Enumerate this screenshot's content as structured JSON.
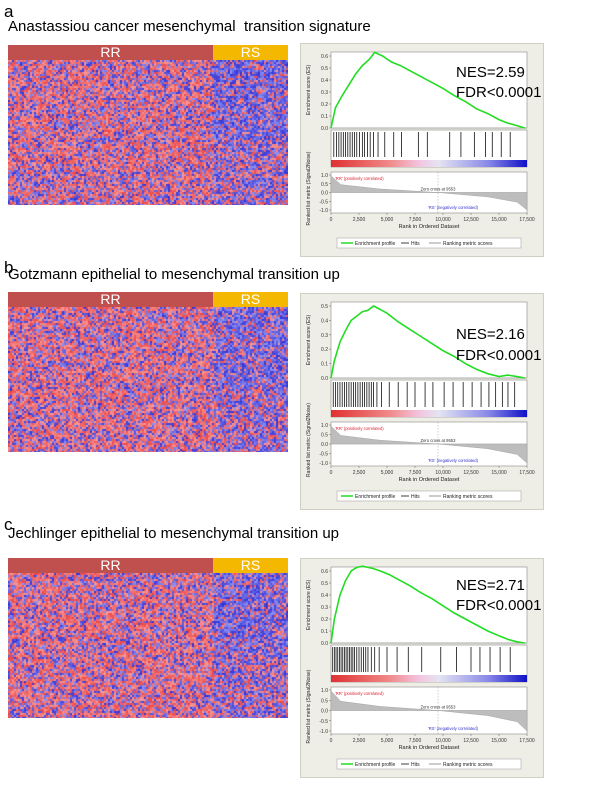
{
  "panels": [
    {
      "letter": "a",
      "title": "Anastassiou cancer mesenchymal  transition signature",
      "group_rr": "RR",
      "group_rs": "RS",
      "nes": "NES=2.59",
      "fdr": "FDR<0.0001"
    },
    {
      "letter": "b",
      "title": "Gotzmann epithelial to mesenchymal transition up",
      "group_rr": "RR",
      "group_rs": "RS",
      "nes": "NES=2.16",
      "fdr": "FDR<0.0001"
    },
    {
      "letter": "c",
      "title": "Jechlinger epithelial to mesenchymal transition up",
      "group_rr": "RR",
      "group_rs": "RS",
      "nes": "NES=2.71",
      "fdr": "FDR<0.0001"
    }
  ],
  "gsea_labels": {
    "es_axis": "Enrichment score (ES)",
    "metric_axis": "Ranked list metric (Signal2Noise)",
    "x_axis": "Rank in Ordered Dataset",
    "pos_label": "'RR' (positively correlated)",
    "neg_label": "'RS' (negatively correlated)",
    "zero_cross": "Zero cross at 9553",
    "legend_profile": "Enrichment profile",
    "legend_hits": "Hits",
    "legend_ranking": "Ranking metric scores"
  },
  "colors": {
    "rr": "#c0504d",
    "rs": "#f5b800",
    "profile": "#22dd22",
    "heat_red": "#d9534f",
    "heat_blue": "#3a3ab8"
  },
  "chart_data": [
    {
      "type": "line",
      "title": "Anastassiou cancer mesenchymal  transition signature",
      "xlabel": "Rank in Ordered Dataset",
      "ylabel": "Enrichment score (ES)",
      "xlim": [
        0,
        17500
      ],
      "ylim": [
        0,
        0.6
      ],
      "x_ticks": [
        "0",
        "2,500",
        "5,000",
        "7,500",
        "10,000",
        "12,500",
        "15,000",
        "17,500"
      ],
      "y_ticks": [
        "0.0",
        "0.1",
        "0.2",
        "0.3",
        "0.4",
        "0.5",
        "0.6"
      ],
      "metric_ticks": [
        "1.0",
        "0.5",
        "0.0",
        "-0.5",
        "-1.0"
      ],
      "x": [
        0,
        400,
        1000,
        1600,
        2200,
        2800,
        3400,
        3900,
        4600,
        5400,
        6200,
        7000,
        8000,
        9000,
        10000,
        11000,
        12000,
        13000,
        14000,
        15000,
        15800,
        16600,
        17300
      ],
      "y": [
        0.0,
        0.17,
        0.27,
        0.36,
        0.45,
        0.52,
        0.57,
        0.63,
        0.6,
        0.55,
        0.52,
        0.48,
        0.43,
        0.38,
        0.33,
        0.27,
        0.22,
        0.16,
        0.12,
        0.07,
        0.04,
        0.02,
        0.0
      ],
      "hits": [
        250,
        500,
        700,
        900,
        1100,
        1300,
        1500,
        1700,
        1900,
        2100,
        2300,
        2550,
        2800,
        3000,
        3250,
        3500,
        3800,
        4200,
        4800,
        5600,
        6300,
        7800,
        8600,
        10600,
        11600,
        12800,
        13800,
        14400,
        15200,
        16000
      ],
      "zero_cross": 9553
    },
    {
      "type": "line",
      "title": "Gotzmann epithelial to mesenchymal transition up",
      "xlabel": "Rank in Ordered Dataset",
      "ylabel": "Enrichment score (ES)",
      "xlim": [
        0,
        17500
      ],
      "ylim": [
        0,
        0.5
      ],
      "x_ticks": [
        "0",
        "2,500",
        "5,000",
        "7,500",
        "10,000",
        "12,500",
        "15,000",
        "17,500"
      ],
      "y_ticks": [
        "0.0",
        "0.1",
        "0.2",
        "0.3",
        "0.4",
        "0.5"
      ],
      "metric_ticks": [
        "1.0",
        "0.5",
        "0.0",
        "-0.5",
        "-1.0"
      ],
      "x": [
        0,
        300,
        800,
        1300,
        1800,
        2300,
        2800,
        3300,
        3800,
        4300,
        5000,
        6000,
        7000,
        8000,
        9000,
        10000,
        11000,
        12000,
        13000,
        14000,
        15000,
        15800,
        16600,
        17300
      ],
      "y": [
        0.0,
        0.12,
        0.25,
        0.33,
        0.4,
        0.43,
        0.46,
        0.47,
        0.5,
        0.48,
        0.45,
        0.39,
        0.34,
        0.29,
        0.24,
        0.19,
        0.15,
        0.1,
        0.06,
        0.03,
        0.01,
        0.02,
        0.01,
        0.0
      ],
      "hits": [
        200,
        400,
        600,
        800,
        1000,
        1200,
        1400,
        1600,
        1800,
        2000,
        2200,
        2400,
        2600,
        2800,
        3000,
        3200,
        3400,
        3600,
        3800,
        4100,
        4500,
        5200,
        6000,
        6800,
        7500,
        8400,
        9100,
        10100,
        10900,
        11800,
        12600,
        13400,
        14100,
        14700,
        15300,
        15800,
        16400
      ],
      "zero_cross": 9553
    },
    {
      "type": "line",
      "title": "Jechlinger epithelial to mesenchymal transition up",
      "xlabel": "Rank in Ordered Dataset",
      "ylabel": "Enrichment score (ES)",
      "xlim": [
        0,
        17500
      ],
      "ylim": [
        0,
        0.6
      ],
      "x_ticks": [
        "0",
        "2,500",
        "5,000",
        "7,500",
        "10,000",
        "12,500",
        "15,000",
        "17,500"
      ],
      "y_ticks": [
        "0.0",
        "0.1",
        "0.2",
        "0.3",
        "0.4",
        "0.5",
        "0.6"
      ],
      "metric_ticks": [
        "1.0",
        "0.5",
        "0.0",
        "-0.5",
        "-1.0"
      ],
      "x": [
        0,
        300,
        800,
        1300,
        1800,
        2300,
        2800,
        3300,
        3800,
        4400,
        5200,
        6000,
        7000,
        8000,
        9000,
        10000,
        11000,
        12000,
        13000,
        14000,
        15000,
        15800,
        16600,
        17300
      ],
      "y": [
        0.0,
        0.2,
        0.4,
        0.52,
        0.6,
        0.63,
        0.64,
        0.63,
        0.62,
        0.6,
        0.57,
        0.53,
        0.48,
        0.42,
        0.37,
        0.31,
        0.25,
        0.2,
        0.15,
        0.1,
        0.06,
        0.03,
        0.01,
        0.0
      ],
      "hits": [
        150,
        300,
        450,
        600,
        750,
        900,
        1050,
        1200,
        1350,
        1500,
        1650,
        1800,
        1950,
        2100,
        2300,
        2500,
        2700,
        2900,
        3100,
        3300,
        3600,
        3900,
        4300,
        5000,
        5900,
        6900,
        8100,
        9800,
        11200,
        12500,
        13300,
        14200,
        15100,
        16000
      ],
      "zero_cross": 9553
    }
  ]
}
